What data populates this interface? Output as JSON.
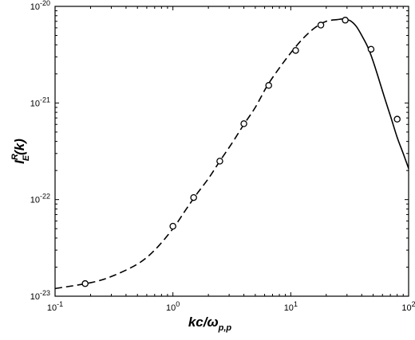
{
  "chart_data": {
    "type": "line",
    "xscale": "log",
    "yscale": "log",
    "xlim": [
      0.1,
      100
    ],
    "ylim": [
      1e-23,
      1e-20
    ],
    "grid": false,
    "xlabel": {
      "main": "kc/ω",
      "sub": "p,p"
    },
    "ylabel": {
      "main": "I",
      "sup": "R",
      "sub": "E",
      "tail": "(k)"
    },
    "x_ticks": [
      {
        "base": "10",
        "exp": "-1",
        "value": 0.1
      },
      {
        "base": "10",
        "exp": "0",
        "value": 1
      },
      {
        "base": "10",
        "exp": "1",
        "value": 10
      },
      {
        "base": "10",
        "exp": "2",
        "value": 100
      }
    ],
    "y_ticks": [
      {
        "base": "10",
        "exp": "-23",
        "value": 1e-23
      },
      {
        "base": "10",
        "exp": "-22",
        "value": 1e-22
      },
      {
        "base": "10",
        "exp": "-21",
        "value": 1e-21
      },
      {
        "base": "10",
        "exp": "-20",
        "value": 1e-20
      }
    ],
    "series": [
      {
        "style": "dashed",
        "x": [
          0.1,
          0.2,
          0.3,
          0.5,
          0.7,
          1.0,
          1.3,
          1.6,
          2.0,
          2.5,
          3.2,
          4.0,
          5.0,
          6.3,
          8.0,
          10,
          12.6,
          16,
          20,
          25
        ],
        "y": [
          1.2e-23,
          1.38e-23,
          1.6e-23,
          2.15e-23,
          3e-23,
          5e-23,
          8e-23,
          1.15e-22,
          1.65e-22,
          2.5e-22,
          3.9e-22,
          6e-22,
          9e-22,
          1.5e-21,
          2.3e-21,
          3.3e-21,
          4.6e-21,
          6e-21,
          7e-21,
          7.3e-21
        ]
      },
      {
        "style": "solid",
        "x": [
          25,
          28,
          32,
          36,
          40,
          45,
          50,
          56,
          63,
          71,
          80,
          90,
          100
        ],
        "y": [
          7.3e-21,
          7.4e-21,
          7.1e-21,
          6.2e-21,
          5e-21,
          3.8e-21,
          2.7e-21,
          1.75e-21,
          1.1e-21,
          7e-22,
          4.4e-22,
          3e-22,
          2.1e-22
        ]
      },
      {
        "style": "markers",
        "marker": "circle",
        "x": [
          0.18,
          1.0,
          1.5,
          2.5,
          4.0,
          6.5,
          11,
          18,
          29,
          48,
          80
        ],
        "y": [
          1.35e-23,
          5.3e-23,
          1.05e-22,
          2.5e-22,
          6.1e-22,
          1.52e-21,
          3.5e-21,
          6.4e-21,
          7.2e-21,
          3.6e-21,
          6.8e-22
        ]
      }
    ]
  }
}
